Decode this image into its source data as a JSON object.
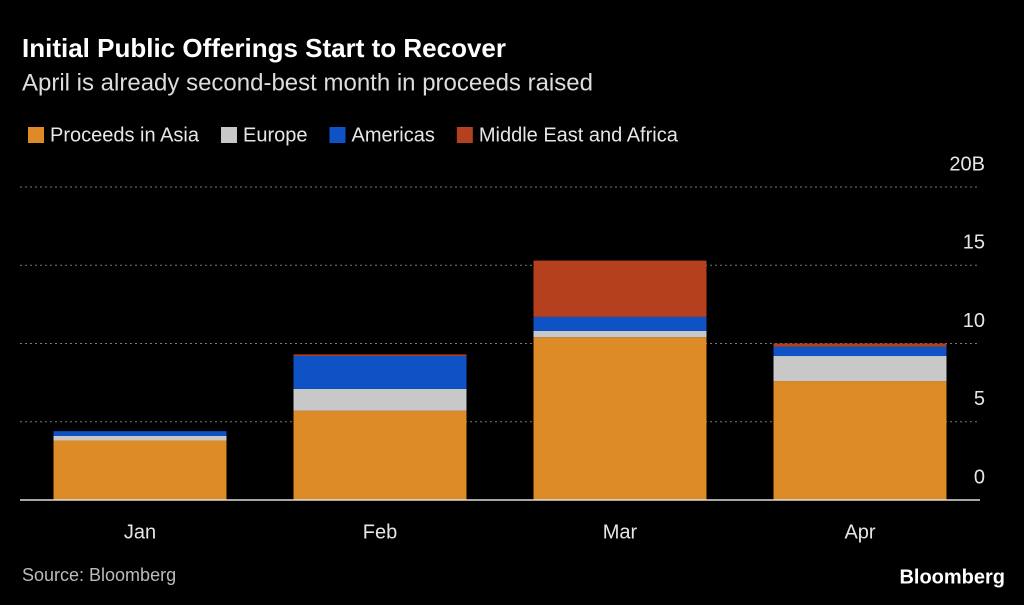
{
  "chart_data": {
    "type": "stacked_bar",
    "title": "Initial Public Offerings Start to Recover",
    "subtitle": "April is already second-best month in proceeds raised",
    "categories": [
      "Jan",
      "Feb",
      "Mar",
      "Apr"
    ],
    "series": [
      {
        "name": "Proceeds in Asia",
        "color": "#dc8b26",
        "values": [
          3.8,
          5.7,
          10.4,
          7.6
        ]
      },
      {
        "name": "Europe",
        "color": "#c8c8c8",
        "values": [
          0.3,
          1.4,
          0.4,
          1.6
        ]
      },
      {
        "name": "Americas",
        "color": "#0f52c6",
        "values": [
          0.3,
          2.1,
          0.9,
          0.6
        ]
      },
      {
        "name": "Middle East and Africa",
        "color": "#b5401e",
        "values": [
          0,
          0.1,
          3.6,
          0.2
        ]
      }
    ],
    "ylim": [
      0,
      20
    ],
    "yticks": [
      0,
      5,
      10,
      15,
      {
        "value": 20,
        "label": "20B"
      }
    ],
    "grid": true,
    "source": "Source: Bloomberg",
    "brand": "Bloomberg"
  }
}
